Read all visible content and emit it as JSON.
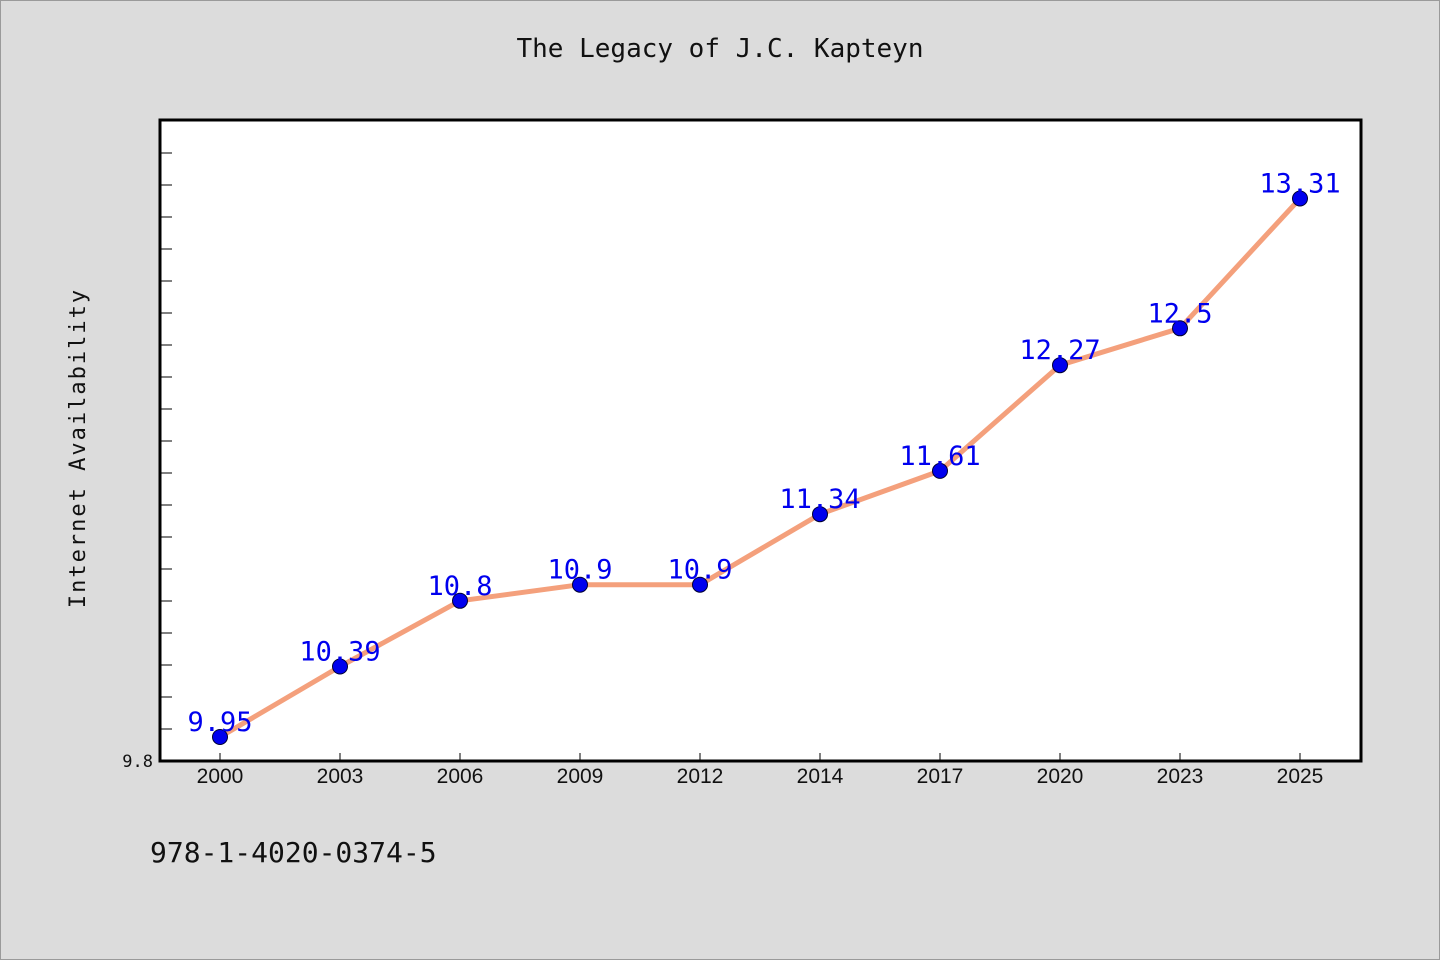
{
  "chart_data": {
    "type": "line",
    "title": "The Legacy of J.C. Kapteyn",
    "ylabel": "Internet Availability",
    "xlabel": "",
    "categories": [
      "2000",
      "2003",
      "2006",
      "2009",
      "2012",
      "2014",
      "2017",
      "2020",
      "2023",
      "2025"
    ],
    "series": [
      {
        "values": [
          9.95,
          10.39,
          10.8,
          10.9,
          10.9,
          11.34,
          11.61,
          12.27,
          12.5,
          13.31
        ],
        "labels": [
          "9.95",
          "10.39",
          "10.8",
          "10.9",
          "10.9",
          "11.34",
          "11.61",
          "12.27",
          "12.5",
          "13.31"
        ]
      }
    ],
    "ylim": [
      9.8,
      13.8
    ],
    "y_tick_label": "9.8",
    "grid": false,
    "line_color": "#f4a07c",
    "marker_color": "#0000ee",
    "label_color": "#0000ee"
  },
  "footer": {
    "code": "978-1-4020-0374-5"
  }
}
